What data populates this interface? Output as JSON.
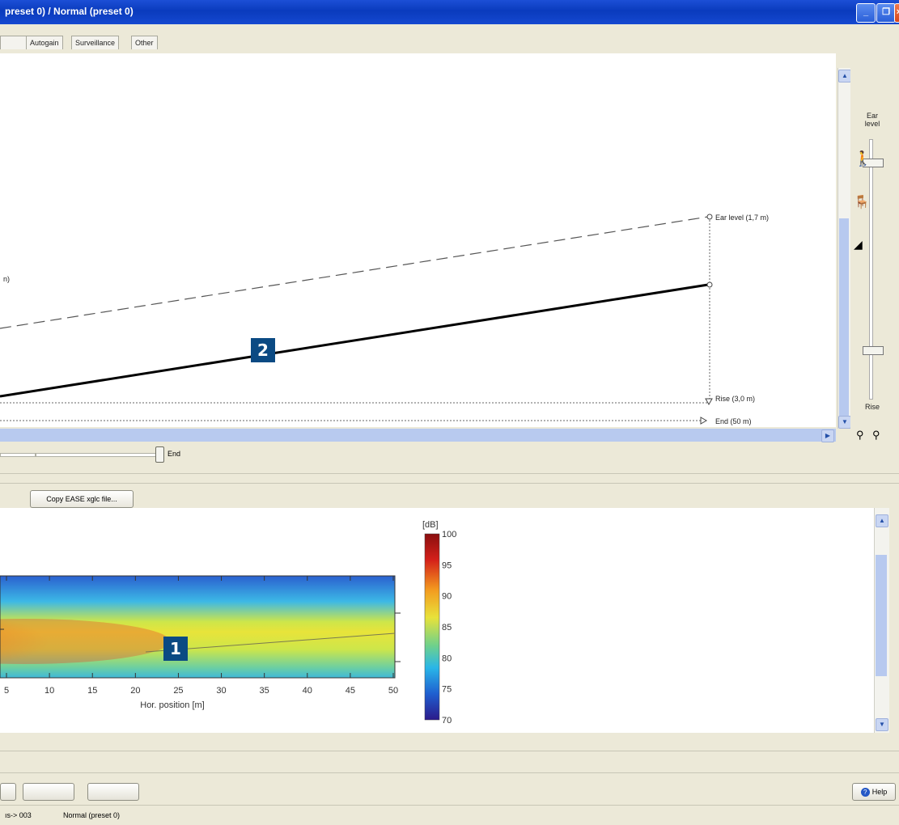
{
  "window": {
    "title": "preset 0) / Normal (preset 0)",
    "minimize_glyph": "_",
    "maximize_glyph": "❐",
    "close_glyph": "×"
  },
  "tabs": [
    {
      "label": ""
    },
    {
      "label": "Autogain"
    },
    {
      "label": "Surveillance"
    },
    {
      "label": "Other"
    }
  ],
  "profile": {
    "ear_level_label": "Ear level (1,7 m)",
    "rise_label": "Rise (3,0 m)",
    "end_label": "End (50 m)",
    "clipped_label": "n)"
  },
  "controls": {
    "ear_level_label": "Ear level",
    "rise_label": "Rise",
    "icons": [
      "standing-person-icon",
      "seated-person-icon",
      "reclining-person-icon",
      "zoom-in-icon",
      "zoom-out-icon"
    ]
  },
  "slider": {
    "end_label": "End"
  },
  "copy_button": "Copy EASE xglc file...",
  "chart_data": {
    "type": "heatmap",
    "title": "",
    "xlabel": "Hor. position [m]",
    "x_ticks": [
      "5",
      "10",
      "15",
      "20",
      "25",
      "30",
      "35",
      "40",
      "45",
      "50"
    ],
    "x_range": [
      4,
      50
    ],
    "colorbar": {
      "unit": "[dB]",
      "ticks": [
        "100",
        "95",
        "90",
        "85",
        "80",
        "75",
        "70"
      ],
      "range": [
        70,
        100
      ],
      "colors": [
        "#2b1a8a",
        "#1f5fd0",
        "#29b6e8",
        "#6fd18b",
        "#e8e23a",
        "#f39a1f",
        "#d4201a",
        "#8a0f0f"
      ]
    }
  },
  "badges": {
    "one": "1",
    "two": "2"
  },
  "bottom": {
    "help_label": "Help"
  },
  "status": {
    "left": "ıs-> 003",
    "right": "Normal (preset 0)"
  }
}
